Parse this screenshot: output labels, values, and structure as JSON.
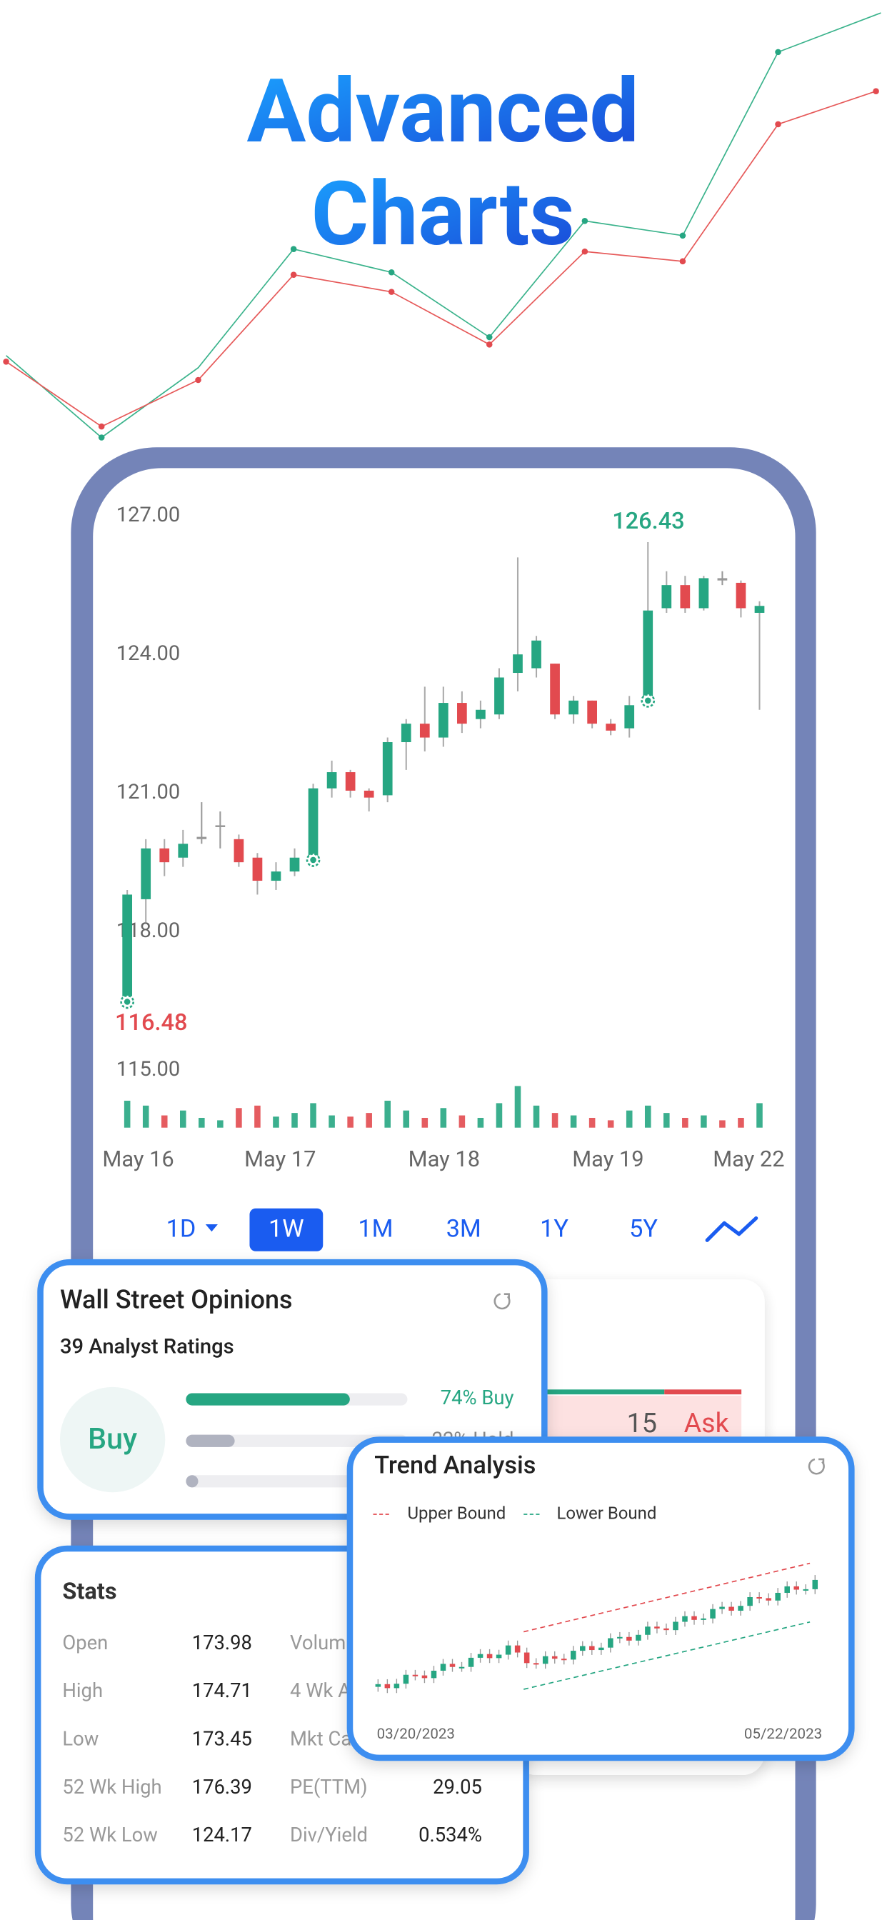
{
  "header": {
    "title_lines": [
      "Advanced",
      "Charts"
    ]
  },
  "chart_data": {
    "type": "candlestick",
    "ylim": [
      114,
      128
    ],
    "yticks": [
      {
        "value": 127,
        "label": "127.00"
      },
      {
        "value": 124,
        "label": "124.00"
      },
      {
        "value": 121,
        "label": "121.00"
      },
      {
        "value": 118,
        "label": "118.00"
      },
      {
        "value": 115,
        "label": "115.00"
      }
    ],
    "x_labels": [
      "May 16",
      "May 17",
      "May 18",
      "May 19",
      "May 22"
    ],
    "open": [
      116.6,
      118.7,
      119.8,
      119.6,
      120.0,
      120.3,
      120.0,
      119.6,
      119.1,
      119.3,
      119.55,
      121.1,
      121.45,
      121.05,
      120.95,
      122.1,
      122.5,
      122.2,
      122.95,
      122.6,
      122.7,
      123.6,
      123.7,
      123.8,
      122.7,
      123.0,
      122.5,
      122.4,
      123.0,
      125.0,
      125.5,
      125.0,
      125.65,
      125.55,
      124.9
    ],
    "high": [
      118.9,
      120.0,
      120.0,
      120.2,
      120.8,
      120.6,
      120.1,
      119.7,
      119.5,
      119.8,
      121.2,
      121.7,
      121.5,
      121.1,
      122.2,
      122.6,
      123.3,
      123.3,
      123.2,
      123.0,
      123.7,
      126.1,
      124.4,
      123.8,
      123.1,
      123.0,
      122.6,
      123.1,
      126.43,
      125.8,
      125.7,
      125.7,
      125.8,
      125.6,
      125.15
    ],
    "low": [
      116.48,
      118.2,
      119.2,
      119.4,
      119.9,
      119.8,
      119.4,
      118.8,
      118.9,
      119.2,
      119.5,
      120.9,
      120.9,
      120.6,
      120.8,
      121.5,
      121.9,
      122.0,
      122.3,
      122.4,
      122.6,
      123.2,
      123.5,
      122.6,
      122.5,
      122.4,
      122.25,
      122.2,
      122.9,
      124.9,
      124.9,
      124.95,
      125.5,
      124.8,
      122.8
    ],
    "close": [
      118.8,
      119.8,
      119.5,
      119.9,
      120.05,
      120.3,
      119.5,
      119.1,
      119.3,
      119.6,
      121.1,
      121.45,
      121.05,
      120.9,
      122.1,
      122.5,
      122.2,
      122.95,
      122.5,
      122.8,
      123.5,
      124.0,
      124.3,
      122.7,
      123.0,
      122.5,
      122.35,
      122.9,
      124.95,
      125.5,
      125.0,
      125.65,
      125.6,
      125.0,
      125.05
    ],
    "up_color": "#26a682",
    "down_color": "#e24a4f",
    "annotations": [
      {
        "value": 126.43,
        "label": "126.43"
      },
      {
        "value": 116.48,
        "label": "116.48"
      }
    ]
  },
  "periods": [
    "1D",
    "1W",
    "1M",
    "3M",
    "1Y",
    "5Y"
  ],
  "selected_period": "1W",
  "depth_card": {
    "size": "15",
    "side": "Ask"
  },
  "opinions": {
    "title": "Wall Street Opinions",
    "subtitle": "39 Analyst Ratings",
    "rating": "Buy",
    "bars": [
      {
        "value": 74,
        "label": "74% Buy"
      },
      {
        "value": 22,
        "label": "22% Hold"
      },
      {
        "value": 4
      }
    ]
  },
  "stats": {
    "title": "Stats",
    "rows": [
      [
        "Open",
        "173.98",
        "Volum"
      ],
      [
        "High",
        "174.71",
        "4 Wk A"
      ],
      [
        "Low",
        "173.45",
        "Mkt Ca"
      ],
      [
        "52 Wk High",
        "176.39",
        "PE(TTM)",
        "29.05"
      ],
      [
        "52 Wk Low",
        "124.17",
        "Div/Yield",
        "0.534%"
      ]
    ]
  },
  "trend": {
    "title": "Trend Analysis",
    "legend": [
      "Upper Bound",
      "Lower Bound"
    ],
    "start_date": "03/20/2023",
    "end_date": "05/22/2023"
  }
}
